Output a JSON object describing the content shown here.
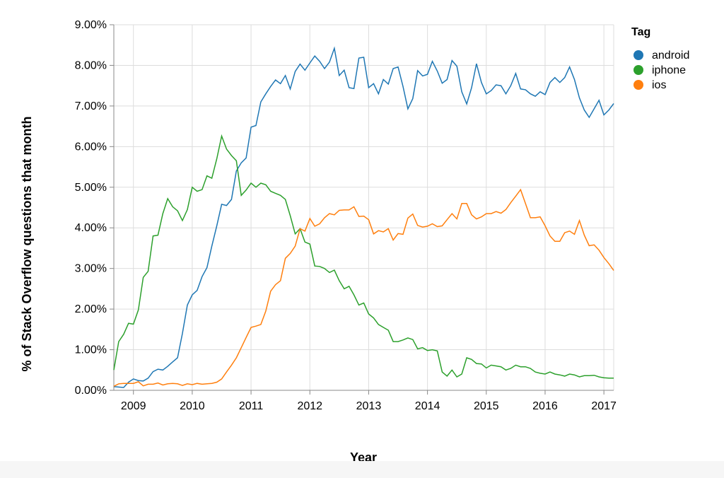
{
  "chart_data": {
    "type": "line",
    "xlabel": "Year",
    "ylabel": "% of Stack Overflow questions that month",
    "x_ticks": [
      "2009",
      "2010",
      "2011",
      "2012",
      "2013",
      "2014",
      "2015",
      "2016",
      "2017"
    ],
    "y_ticks": [
      "0.00%",
      "1.00%",
      "2.00%",
      "3.00%",
      "4.00%",
      "5.00%",
      "6.00%",
      "7.00%",
      "8.00%",
      "9.00%"
    ],
    "xlim": [
      "2008-09",
      "2017-03"
    ],
    "ylim": [
      0,
      9
    ],
    "grid": true,
    "legend": {
      "title": "Tag",
      "placement": "top-right"
    },
    "colors": {
      "android": "#1f77b4",
      "iphone": "#2ca02c",
      "ios": "#ff7f0e"
    },
    "series": [
      {
        "name": "android",
        "start": "2008-09",
        "values": [
          0.09,
          0.08,
          0.07,
          0.2,
          0.28,
          0.24,
          0.23,
          0.3,
          0.46,
          0.52,
          0.5,
          0.59,
          0.7,
          0.8,
          1.4,
          2.1,
          2.35,
          2.46,
          2.8,
          3.02,
          3.55,
          4.05,
          4.58,
          4.55,
          4.7,
          5.4,
          5.6,
          5.72,
          6.48,
          6.52,
          7.1,
          7.3,
          7.48,
          7.64,
          7.55,
          7.75,
          7.42,
          7.85,
          8.03,
          7.88,
          8.06,
          8.23,
          8.1,
          7.92,
          8.08,
          8.42,
          7.75,
          7.88,
          7.45,
          7.43,
          8.18,
          8.2,
          7.45,
          7.55,
          7.3,
          7.65,
          7.54,
          7.92,
          7.96,
          7.48,
          6.93,
          7.18,
          7.87,
          7.74,
          7.78,
          8.1,
          7.86,
          7.56,
          7.65,
          8.12,
          7.98,
          7.35,
          7.05,
          7.45,
          8.04,
          7.58,
          7.3,
          7.38,
          7.52,
          7.5,
          7.3,
          7.5,
          7.8,
          7.42,
          7.4,
          7.3,
          7.24,
          7.35,
          7.28,
          7.58,
          7.7,
          7.58,
          7.7,
          7.96,
          7.65,
          7.2,
          6.9,
          6.72,
          6.93,
          7.14,
          6.78,
          6.9,
          7.06
        ]
      },
      {
        "name": "iphone",
        "start": "2008-09",
        "values": [
          0.5,
          1.2,
          1.38,
          1.65,
          1.63,
          1.98,
          2.78,
          2.93,
          3.8,
          3.82,
          4.35,
          4.72,
          4.52,
          4.42,
          4.18,
          4.45,
          5.0,
          4.9,
          4.94,
          5.28,
          5.22,
          5.7,
          6.26,
          5.94,
          5.78,
          5.65,
          4.8,
          4.93,
          5.1,
          5.0,
          5.1,
          5.06,
          4.9,
          4.85,
          4.8,
          4.7,
          4.3,
          3.85,
          3.98,
          3.65,
          3.6,
          3.06,
          3.05,
          3.0,
          2.9,
          2.96,
          2.7,
          2.5,
          2.56,
          2.35,
          2.1,
          2.15,
          1.88,
          1.78,
          1.62,
          1.55,
          1.48,
          1.2,
          1.2,
          1.24,
          1.29,
          1.25,
          1.02,
          1.05,
          0.98,
          1.0,
          0.97,
          0.45,
          0.35,
          0.5,
          0.33,
          0.4,
          0.8,
          0.76,
          0.66,
          0.65,
          0.55,
          0.62,
          0.6,
          0.58,
          0.5,
          0.54,
          0.62,
          0.58,
          0.58,
          0.54,
          0.45,
          0.42,
          0.4,
          0.45,
          0.4,
          0.38,
          0.35,
          0.4,
          0.38,
          0.33,
          0.36,
          0.36,
          0.37,
          0.33,
          0.31,
          0.3,
          0.3
        ]
      },
      {
        "name": "ios",
        "start": "2008-09",
        "values": [
          0.1,
          0.16,
          0.17,
          0.17,
          0.17,
          0.21,
          0.11,
          0.15,
          0.15,
          0.18,
          0.13,
          0.16,
          0.17,
          0.16,
          0.12,
          0.16,
          0.14,
          0.17,
          0.15,
          0.16,
          0.17,
          0.2,
          0.28,
          0.45,
          0.62,
          0.8,
          1.05,
          1.3,
          1.55,
          1.58,
          1.62,
          1.95,
          2.44,
          2.6,
          2.7,
          3.25,
          3.37,
          3.55,
          3.98,
          3.92,
          4.23,
          4.04,
          4.1,
          4.25,
          4.35,
          4.32,
          4.43,
          4.44,
          4.44,
          4.52,
          4.28,
          4.29,
          4.2,
          3.85,
          3.93,
          3.9,
          3.98,
          3.7,
          3.86,
          3.84,
          4.24,
          4.34,
          4.06,
          4.02,
          4.04,
          4.1,
          4.03,
          4.05,
          4.2,
          4.35,
          4.22,
          4.6,
          4.6,
          4.32,
          4.22,
          4.27,
          4.35,
          4.35,
          4.4,
          4.36,
          4.45,
          4.62,
          4.78,
          4.94,
          4.6,
          4.25,
          4.25,
          4.27,
          4.05,
          3.8,
          3.67,
          3.67,
          3.88,
          3.92,
          3.84,
          4.18,
          3.82,
          3.56,
          3.58,
          3.45,
          3.27,
          3.12,
          2.95
        ]
      }
    ]
  }
}
